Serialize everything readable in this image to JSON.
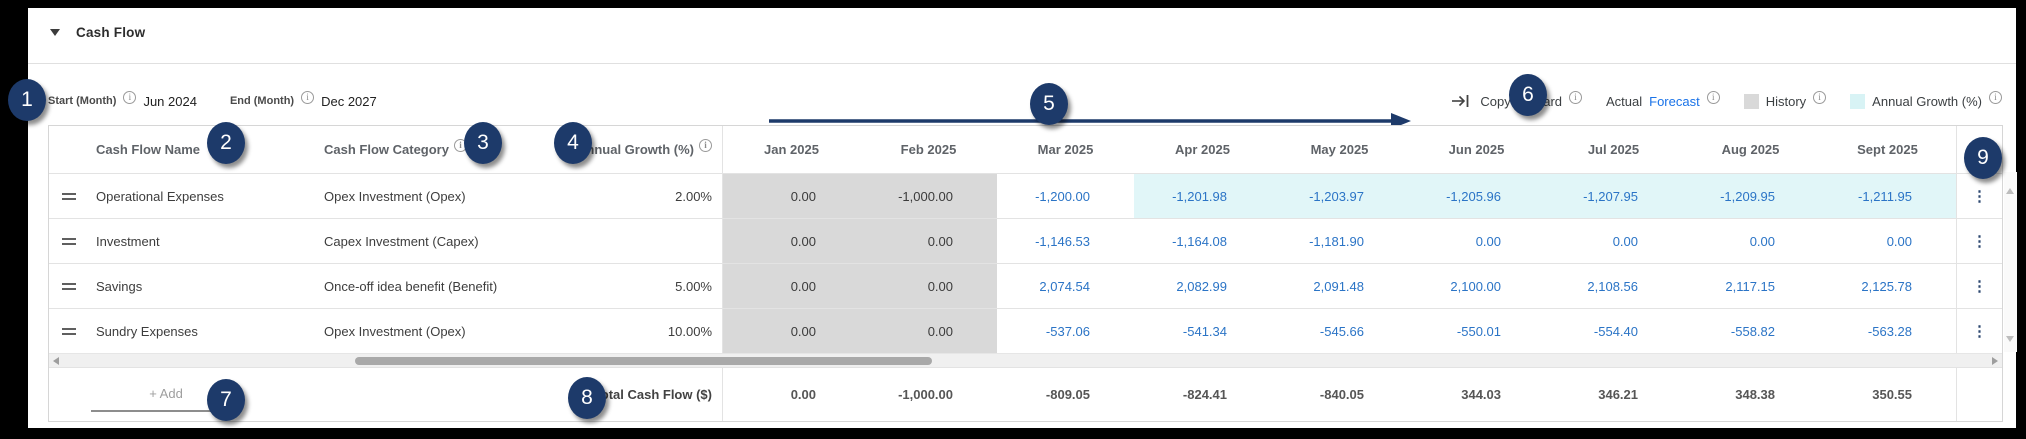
{
  "panel": {
    "title": "Cash Flow"
  },
  "settings": {
    "start_label": "Start (Month)",
    "start_value": "Jun 2024",
    "end_label": "End (Month)",
    "end_value": "Dec 2027"
  },
  "legend": {
    "copy_forward": "Copy Forward",
    "actual": "Actual",
    "forecast": "Forecast",
    "history": "History",
    "annual_growth": "Annual Growth (%)"
  },
  "table": {
    "columns": {
      "name": "Cash Flow Name",
      "category": "Cash Flow Category",
      "growth": "Annual Growth (%)"
    },
    "months": [
      "Jan 2025",
      "Feb 2025",
      "Mar 2025",
      "Apr 2025",
      "May 2025",
      "Jun 2025",
      "Jul 2025",
      "Aug 2025",
      "Sept 2025"
    ],
    "rows": [
      {
        "name": "Operational Expenses",
        "category": "Opex Investment (Opex)",
        "growth": "2.00%",
        "values": [
          "0.00",
          "-1,000.00",
          "-1,200.00",
          "-1,201.98",
          "-1,203.97",
          "-1,205.96",
          "-1,207.95",
          "-1,209.95",
          "-1,211.95"
        ],
        "history_cols": 2,
        "highlight_from": 3
      },
      {
        "name": "Investment",
        "category": "Capex Investment (Capex)",
        "growth": "",
        "values": [
          "0.00",
          "0.00",
          "-1,146.53",
          "-1,164.08",
          "-1,181.90",
          "0.00",
          "0.00",
          "0.00",
          "0.00"
        ],
        "history_cols": 2,
        "highlight_from": -1
      },
      {
        "name": "Savings",
        "category": "Once-off idea benefit (Benefit)",
        "growth": "5.00%",
        "values": [
          "0.00",
          "0.00",
          "2,074.54",
          "2,082.99",
          "2,091.48",
          "2,100.00",
          "2,108.56",
          "2,117.15",
          "2,125.78"
        ],
        "history_cols": 2,
        "highlight_from": -1
      },
      {
        "name": "Sundry Expenses",
        "category": "Opex Investment (Opex)",
        "growth": "10.00%",
        "values": [
          "0.00",
          "0.00",
          "-537.06",
          "-541.34",
          "-545.66",
          "-550.01",
          "-554.40",
          "-558.82",
          "-563.28"
        ],
        "history_cols": 2,
        "highlight_from": -1
      }
    ],
    "add_label": "+ Add",
    "total_label": "Total Cash Flow ($)",
    "total_values": [
      "0.00",
      "-1,000.00",
      "-809.05",
      "-824.41",
      "-840.05",
      "344.03",
      "346.21",
      "348.38",
      "350.55"
    ]
  },
  "badges": [
    "1",
    "2",
    "3",
    "4",
    "5",
    "6",
    "7",
    "8",
    "9"
  ],
  "colors": {
    "annotation_navy": "#1d3a6a",
    "forecast_blue": "#2b74c6",
    "history_gray": "#d9d9d9",
    "annual_growth_cyan": "#e1f6f8",
    "legend_forecast_blue": "#1a73e8"
  }
}
